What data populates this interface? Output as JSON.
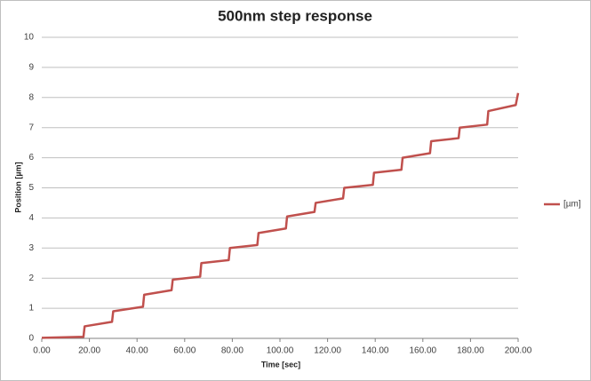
{
  "chart_data": {
    "type": "line",
    "title": "500nm step response",
    "x_label": "Time [sec]",
    "y_label": "Position [µm]",
    "x": [
      0,
      17.5,
      18,
      29.5,
      30,
      42.5,
      43,
      54.5,
      55,
      66.5,
      67,
      78.5,
      79,
      90.5,
      91,
      102.5,
      103,
      114.5,
      115,
      126.5,
      127,
      139,
      139.5,
      151,
      151.5,
      163,
      163.5,
      175,
      175.5,
      187,
      187.5,
      199,
      200
    ],
    "series": [
      {
        "name": "[µm]",
        "color": "#c0504d",
        "values": [
          0.02,
          0.05,
          0.4,
          0.55,
          0.9,
          1.05,
          1.45,
          1.6,
          1.95,
          2.05,
          2.5,
          2.6,
          3.0,
          3.1,
          3.5,
          3.65,
          4.05,
          4.2,
          4.5,
          4.65,
          5.0,
          5.1,
          5.5,
          5.6,
          6.0,
          6.15,
          6.55,
          6.65,
          7.0,
          7.1,
          7.55,
          7.75,
          8.15
        ]
      }
    ],
    "xlim": [
      0,
      200
    ],
    "xticks": [
      {
        "value": 0,
        "label": "0.00"
      },
      {
        "value": 20,
        "label": "20.00"
      },
      {
        "value": 40,
        "label": "40.00"
      },
      {
        "value": 60,
        "label": "60.00"
      },
      {
        "value": 80,
        "label": "80.00"
      },
      {
        "value": 100,
        "label": "100.00"
      },
      {
        "value": 120,
        "label": "120.00"
      },
      {
        "value": 140,
        "label": "140.00"
      },
      {
        "value": 160,
        "label": "160.00"
      },
      {
        "value": 180,
        "label": "180.00"
      },
      {
        "value": 200,
        "label": "200.00"
      }
    ],
    "ylim": [
      0,
      10
    ],
    "yticks": [
      0,
      1,
      2,
      3,
      4,
      5,
      6,
      7,
      8,
      9,
      10
    ],
    "grid": true,
    "legend": "right"
  }
}
